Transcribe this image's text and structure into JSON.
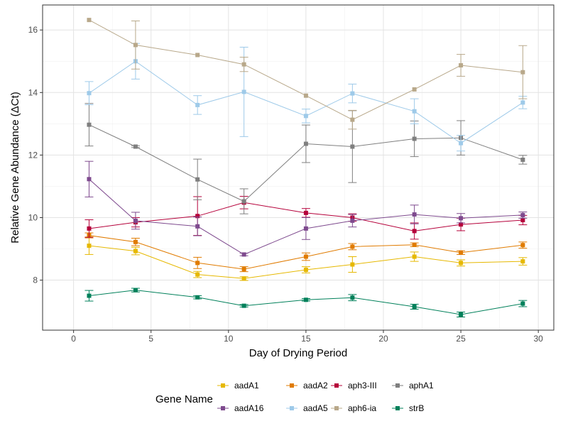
{
  "chart_data": {
    "type": "line",
    "xlabel": "Day of Drying Period",
    "ylabel": "Relative Gene Abundance (ΔCt)",
    "xlim": [
      -2,
      31
    ],
    "ylim": [
      6.4,
      16.8
    ],
    "x_ticks": [
      0,
      5,
      10,
      15,
      20,
      25,
      30
    ],
    "y_ticks": [
      8,
      10,
      12,
      14,
      16
    ],
    "grid": true,
    "legend": {
      "title": "Gene Name",
      "position": "bottom",
      "order": [
        "aadA1",
        "aadA2",
        "aph3-III",
        "aphA1",
        "aadA16",
        "aadA5",
        "aph6-ia",
        "strB"
      ]
    },
    "x": [
      1,
      4,
      8,
      11,
      15,
      18,
      22,
      25,
      29
    ],
    "series": [
      {
        "name": "aadA1",
        "color": "#E6B800",
        "values": [
          9.1,
          8.93,
          8.18,
          8.05,
          8.33,
          8.5,
          8.75,
          8.55,
          8.6
        ],
        "errors": [
          0.28,
          0.12,
          0.1,
          0.06,
          0.1,
          0.25,
          0.15,
          0.1,
          0.12
        ]
      },
      {
        "name": "aadA2",
        "color": "#E07B00",
        "values": [
          9.43,
          9.22,
          8.55,
          8.35,
          8.75,
          9.07,
          9.13,
          8.88,
          9.12
        ],
        "errors": [
          0.08,
          0.12,
          0.18,
          0.08,
          0.12,
          0.1,
          0.06,
          0.06,
          0.1
        ]
      },
      {
        "name": "aph3-III",
        "color": "#B5003A",
        "values": [
          9.65,
          9.85,
          10.05,
          10.48,
          10.15,
          10.0,
          9.57,
          9.78,
          9.92
        ],
        "errors": [
          0.28,
          0.15,
          0.62,
          0.2,
          0.14,
          0.12,
          0.26,
          0.2,
          0.15
        ]
      },
      {
        "name": "aphA1",
        "color": "#7F7F7F",
        "values": [
          12.97,
          12.27,
          11.22,
          10.52,
          12.36,
          12.27,
          12.52,
          12.55,
          11.85
        ],
        "errors": [
          0.68,
          0.03,
          0.65,
          0.4,
          0.6,
          1.15,
          0.57,
          0.55,
          0.14
        ]
      },
      {
        "name": "aadA16",
        "color": "#7E4A8E",
        "values": [
          11.23,
          9.9,
          9.72,
          8.82,
          9.65,
          9.9,
          10.1,
          9.98,
          10.08
        ],
        "errors": [
          0.57,
          0.27,
          0.3,
          0.04,
          0.35,
          0.2,
          0.3,
          0.15,
          0.1
        ]
      },
      {
        "name": "aadA5",
        "color": "#9ECAE9",
        "values": [
          13.98,
          15.0,
          13.6,
          14.02,
          13.25,
          13.97,
          13.4,
          12.38,
          13.68
        ],
        "errors": [
          0.37,
          0.57,
          0.3,
          1.43,
          0.22,
          0.3,
          0.4,
          0.25,
          0.2
        ]
      },
      {
        "name": "aph6-ia",
        "color": "#B8A88A",
        "values": [
          16.32,
          15.52,
          15.2,
          14.9,
          13.9,
          13.13,
          14.1,
          14.87,
          14.65
        ],
        "errors": [
          0.0,
          0.77,
          0.0,
          0.23,
          0.0,
          0.3,
          0.0,
          0.35,
          0.85
        ]
      },
      {
        "name": "strB",
        "color": "#00805A",
        "values": [
          7.5,
          7.68,
          7.45,
          7.18,
          7.37,
          7.44,
          7.15,
          6.9,
          7.25
        ],
        "errors": [
          0.17,
          0.06,
          0.05,
          0.04,
          0.04,
          0.1,
          0.08,
          0.08,
          0.1
        ]
      }
    ]
  }
}
